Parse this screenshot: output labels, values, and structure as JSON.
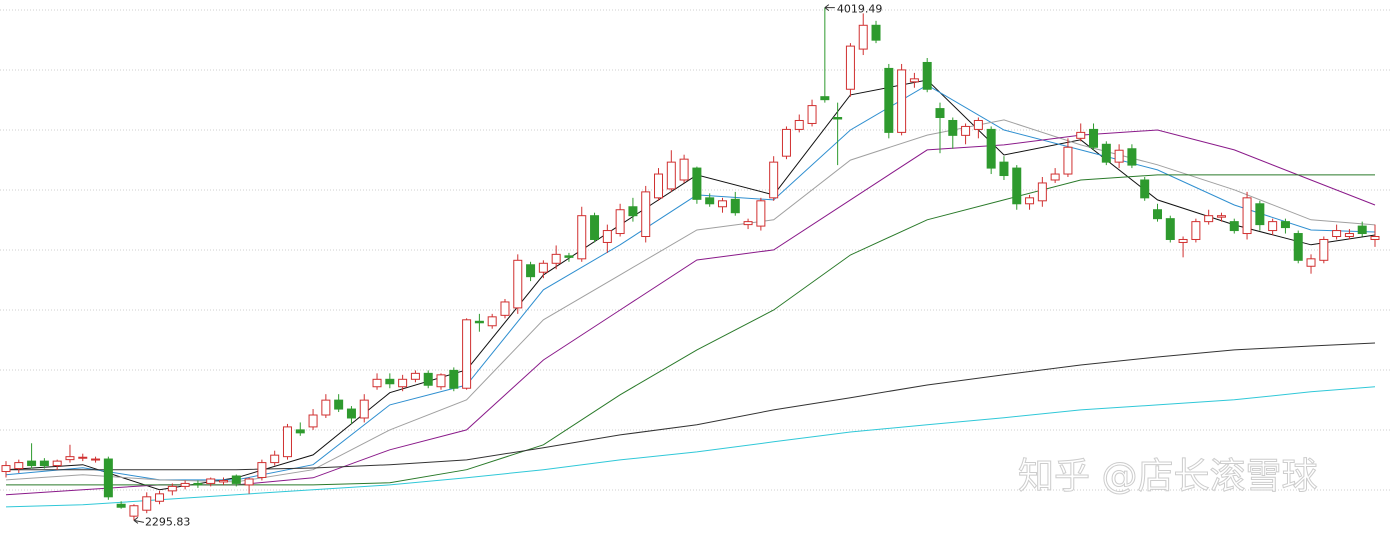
{
  "chart_data": {
    "type": "candlestick",
    "ylim": [
      2250,
      4045
    ],
    "up_color": "#d03030",
    "down_color": "#2e9a2e",
    "open": [
      2460,
      2470,
      2495,
      2495,
      2480,
      2500,
      2505,
      2500,
      2502,
      2350,
      2310,
      2330,
      2360,
      2395,
      2410,
      2420,
      2420,
      2425,
      2445,
      2415,
      2440,
      2490,
      2510,
      2600,
      2610,
      2650,
      2700,
      2670,
      2640,
      2745,
      2770,
      2745,
      2770,
      2790,
      2745,
      2800,
      2740,
      2965,
      2950,
      2985,
      3010,
      3155,
      3130,
      3160,
      3185,
      3175,
      3320,
      3230,
      3260,
      3350,
      3250,
      3380,
      3410,
      3440,
      3480,
      3380,
      3350,
      3375,
      3290,
      3285,
      3380,
      3520,
      3610,
      3630,
      3720,
      3650,
      3745,
      3880,
      3960,
      3815,
      3600,
      3770,
      3835,
      3680,
      3640,
      3590,
      3610,
      3610,
      3500,
      3480,
      3360,
      3370,
      3440,
      3460,
      3580,
      3610,
      3560,
      3500,
      3545,
      3440,
      3340,
      3310,
      3230,
      3240,
      3300,
      3315,
      3300,
      3260,
      3360,
      3270,
      3300,
      3260,
      3150,
      3170,
      3250,
      3250,
      3285,
      3240
    ],
    "high": [
      2495,
      2500,
      2555,
      2505,
      2500,
      2550,
      2520,
      2510,
      2510,
      2360,
      2350,
      2390,
      2395,
      2420,
      2430,
      2430,
      2440,
      2440,
      2450,
      2440,
      2500,
      2530,
      2620,
      2625,
      2670,
      2720,
      2720,
      2680,
      2720,
      2790,
      2790,
      2785,
      2800,
      2800,
      2790,
      2810,
      2975,
      2990,
      2990,
      3040,
      3190,
      3165,
      3170,
      3220,
      3195,
      3350,
      3330,
      3290,
      3360,
      3380,
      3420,
      3480,
      3540,
      3525,
      3485,
      3395,
      3380,
      3400,
      3310,
      3380,
      3520,
      3620,
      3660,
      3710,
      4019.49,
      3700,
      3900,
      4000,
      3975,
      3830,
      3830,
      3800,
      3850,
      3700,
      3650,
      3630,
      3650,
      3620,
      3520,
      3490,
      3390,
      3450,
      3480,
      3580,
      3630,
      3630,
      3570,
      3560,
      3560,
      3450,
      3360,
      3320,
      3250,
      3310,
      3340,
      3330,
      3310,
      3400,
      3370,
      3310,
      3310,
      3270,
      3190,
      3250,
      3290,
      3275,
      3300,
      3290
    ],
    "low": [
      2440,
      2455,
      2470,
      2470,
      2465,
      2490,
      2495,
      2490,
      2365,
      2335,
      2295.83,
      2320,
      2350,
      2380,
      2400,
      2405,
      2410,
      2415,
      2410,
      2385,
      2430,
      2480,
      2500,
      2580,
      2600,
      2640,
      2660,
      2620,
      2625,
      2735,
      2740,
      2730,
      2760,
      2740,
      2735,
      2730,
      2735,
      2930,
      2940,
      2975,
      2990,
      3100,
      3110,
      3140,
      3165,
      3165,
      3230,
      3195,
      3250,
      3300,
      3230,
      3370,
      3400,
      3430,
      3360,
      3350,
      3330,
      3320,
      3275,
      3270,
      3370,
      3510,
      3600,
      3620,
      3700,
      3490,
      3720,
      3860,
      3900,
      3580,
      3590,
      3750,
      3735,
      3530,
      3545,
      3560,
      3580,
      3460,
      3440,
      3340,
      3340,
      3350,
      3430,
      3450,
      3570,
      3540,
      3490,
      3480,
      3480,
      3370,
      3300,
      3230,
      3180,
      3230,
      3290,
      3300,
      3260,
      3240,
      3270,
      3255,
      3260,
      3160,
      3125,
      3160,
      3240,
      3240,
      3250,
      3215
    ],
    "close": [
      2480,
      2490,
      2480,
      2480,
      2495,
      2510,
      2508,
      2502,
      2375,
      2340,
      2345,
      2375,
      2385,
      2410,
      2420,
      2415,
      2435,
      2430,
      2420,
      2435,
      2490,
      2515,
      2610,
      2590,
      2650,
      2700,
      2670,
      2640,
      2700,
      2770,
      2755,
      2770,
      2790,
      2750,
      2785,
      2740,
      2970,
      2960,
      2980,
      3030,
      3170,
      3115,
      3160,
      3190,
      3180,
      3320,
      3240,
      3270,
      3340,
      3320,
      3400,
      3460,
      3500,
      3510,
      3375,
      3360,
      3370,
      3330,
      3300,
      3370,
      3500,
      3610,
      3640,
      3690,
      3710,
      3645,
      3890,
      3960,
      3910,
      3600,
      3810,
      3780,
      3745,
      3650,
      3590,
      3620,
      3640,
      3480,
      3455,
      3360,
      3380,
      3430,
      3460,
      3550,
      3600,
      3550,
      3500,
      3540,
      3490,
      3380,
      3310,
      3240,
      3240,
      3300,
      3320,
      3320,
      3270,
      3380,
      3290,
      3300,
      3280,
      3170,
      3175,
      3240,
      3270,
      3260,
      3260,
      3250
    ],
    "series": [
      {
        "color": "#111111",
        "x": [
          0,
          6,
          12,
          18,
          24,
          30,
          36,
          42,
          48,
          54,
          60,
          66,
          72,
          78,
          84,
          90,
          96,
          102,
          107
        ],
        "values": [
          2466,
          2483,
          2399,
          2439,
          2516,
          2725,
          2802,
          3121,
          3289,
          3457,
          3390,
          3726,
          3776,
          3524,
          3575,
          3373,
          3289,
          3222,
          3255
        ]
      },
      {
        "color": "#2f8fd0",
        "x": [
          0,
          6,
          12,
          18,
          24,
          30,
          36,
          42,
          48,
          54,
          60,
          66,
          72,
          78,
          84,
          90,
          96,
          102,
          107
        ],
        "values": [
          2449,
          2473,
          2432,
          2432,
          2483,
          2684,
          2751,
          3071,
          3222,
          3390,
          3373,
          3608,
          3759,
          3608,
          3541,
          3474,
          3356,
          3272,
          3265
        ]
      },
      {
        "color": "#a0a0a0",
        "x": [
          0,
          6,
          12,
          18,
          24,
          30,
          36,
          42,
          48,
          54,
          60,
          66,
          72,
          78,
          84,
          90,
          96,
          102,
          107
        ],
        "values": [
          2432,
          2449,
          2432,
          2425,
          2466,
          2600,
          2701,
          2970,
          3121,
          3272,
          3306,
          3507,
          3591,
          3642,
          3558,
          3491,
          3407,
          3306,
          3289
        ]
      },
      {
        "color": "#8a1a8a",
        "x": [
          0,
          6,
          12,
          18,
          24,
          30,
          36,
          42,
          48,
          54,
          60,
          66,
          72,
          78,
          84,
          90,
          96,
          102,
          107
        ],
        "values": [
          2382,
          2399,
          2415,
          2415,
          2439,
          2533,
          2600,
          2835,
          3003,
          3171,
          3205,
          3373,
          3541,
          3558,
          3591,
          3608,
          3541,
          3440,
          3356
        ]
      },
      {
        "color": "#2a7a2a",
        "x": [
          0,
          6,
          12,
          18,
          24,
          30,
          36,
          42,
          48,
          54,
          60,
          66,
          72,
          78,
          84,
          90,
          96,
          102,
          107
        ],
        "values": [
          2415,
          2415,
          2415,
          2415,
          2415,
          2422,
          2466,
          2550,
          2718,
          2869,
          3003,
          3188,
          3306,
          3373,
          3440,
          3457,
          3457,
          3457,
          3457
        ]
      },
      {
        "color": "#333333",
        "x": [
          0,
          6,
          12,
          18,
          24,
          30,
          36,
          42,
          48,
          54,
          60,
          66,
          72,
          78,
          84,
          90,
          96,
          102,
          107
        ],
        "values": [
          2466,
          2466,
          2466,
          2466,
          2472,
          2483,
          2499,
          2540,
          2583,
          2617,
          2667,
          2708,
          2751,
          2785,
          2818,
          2845,
          2869,
          2882,
          2892
        ]
      },
      {
        "color": "#30c8d8",
        "x": [
          0,
          6,
          12,
          18,
          24,
          30,
          36,
          42,
          48,
          54,
          60,
          66,
          72,
          78,
          84,
          90,
          96,
          102,
          107
        ],
        "values": [
          2341,
          2348,
          2365,
          2382,
          2399,
          2415,
          2439,
          2466,
          2499,
          2526,
          2560,
          2593,
          2617,
          2641,
          2667,
          2684,
          2701,
          2728,
          2745
        ]
      }
    ],
    "watermark": "知乎 @店长滚雪球"
  }
}
